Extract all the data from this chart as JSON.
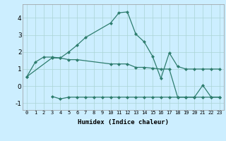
{
  "xlabel": "Humidex (Indice chaleur)",
  "background_color": "#cceeff",
  "grid_color": "#aad4d4",
  "line_color": "#2e7d6e",
  "xlim": [
    -0.5,
    23.5
  ],
  "ylim": [
    -1.4,
    4.8
  ],
  "line1_x": [
    0,
    1,
    2,
    3,
    4,
    5,
    6,
    7,
    10,
    11,
    12,
    13,
    14,
    15,
    16,
    17,
    18,
    19,
    20,
    21,
    22,
    23
  ],
  "line1_y": [
    0.55,
    1.4,
    1.7,
    1.7,
    1.65,
    2.0,
    2.4,
    2.85,
    3.7,
    4.3,
    4.35,
    3.05,
    2.6,
    1.75,
    0.45,
    1.95,
    1.15,
    1.0,
    1.0,
    1.0,
    1.0,
    1.0
  ],
  "line2_x": [
    3,
    4,
    5,
    6,
    7,
    8,
    9,
    10,
    11,
    12,
    13,
    14,
    15,
    16,
    17,
    18,
    19,
    20,
    21,
    22,
    23
  ],
  "line2_y": [
    -0.6,
    -0.75,
    -0.65,
    -0.65,
    -0.65,
    -0.65,
    -0.65,
    -0.65,
    -0.65,
    -0.65,
    -0.65,
    -0.65,
    -0.65,
    -0.65,
    -0.65,
    -0.65,
    -0.65,
    -0.65,
    -0.65,
    -0.65,
    -0.65
  ],
  "line3_x": [
    0,
    3,
    4,
    5,
    6,
    10,
    11,
    12,
    13,
    14,
    15,
    16,
    17,
    18,
    19,
    20,
    21,
    22,
    23
  ],
  "line3_y": [
    0.55,
    1.65,
    1.65,
    1.55,
    1.55,
    1.3,
    1.3,
    1.3,
    1.1,
    1.1,
    1.05,
    1.0,
    1.0,
    -0.65,
    -0.65,
    -0.65,
    0.05,
    -0.65,
    -0.65
  ],
  "xticks": [
    0,
    1,
    2,
    3,
    4,
    5,
    6,
    7,
    8,
    9,
    10,
    11,
    12,
    13,
    14,
    15,
    16,
    17,
    18,
    19,
    20,
    21,
    22,
    23
  ],
  "yticks": [
    -1,
    0,
    1,
    2,
    3,
    4
  ]
}
